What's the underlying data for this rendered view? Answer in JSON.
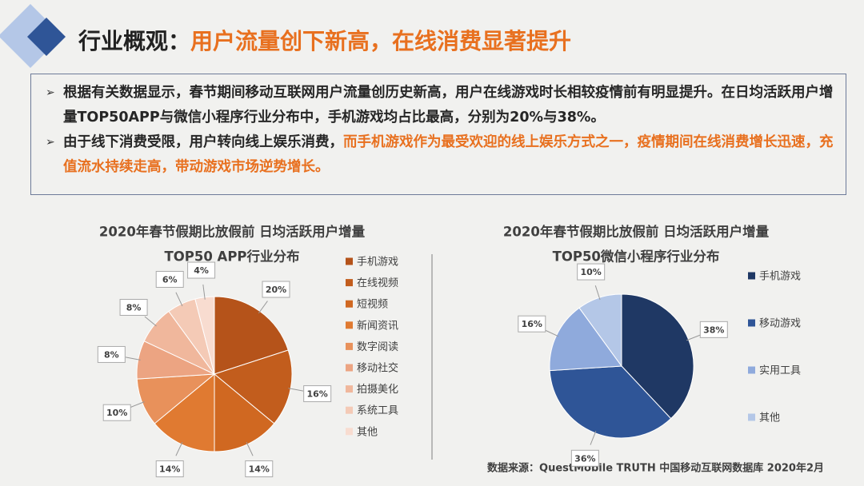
{
  "header": {
    "title_prefix": "行业概观：",
    "title_highlight": "用户流量创下新高，在线消费显著提升"
  },
  "bullets": [
    {
      "segments": [
        {
          "text": "根据有关数据显示，春节期间移动互联网用户流量创历史新高，用户在线游戏时长相较疫情前有明显提升。在日均活跃用户增量TOP50APP与微信小程序行业分布中，手机游戏均占比最高，分别为20%与38%。",
          "color": "#262626"
        }
      ]
    },
    {
      "segments": [
        {
          "text": "由于线下消费受限，用户转向线上娱乐消费，",
          "color": "#262626"
        },
        {
          "text": "而手机游戏作为最受欢迎的线上娱乐方式之一，疫情期间在线消费增长迅速，充值流水持续走高，带动游戏市场逆势增长。",
          "color": "#e8701f"
        }
      ]
    }
  ],
  "chart_data": [
    {
      "type": "pie",
      "title": [
        "2020年春节假期比放假前 日均活跃用户增量",
        "TOP50 APP行业分布"
      ],
      "categories": [
        "手机游戏",
        "在线视频",
        "短视频",
        "新闻资讯",
        "数字阅读",
        "移动社交",
        "拍摄美化",
        "系统工具",
        "其他"
      ],
      "values": [
        20,
        16,
        14,
        14,
        10,
        8,
        8,
        6,
        4
      ],
      "value_labels": [
        "20%",
        "16%",
        "14%",
        "14%",
        "10%",
        "8%",
        "8%",
        "6%",
        "4%"
      ],
      "colors": [
        "#b5531a",
        "#c25d1d",
        "#d06821",
        "#e07a31",
        "#e8915b",
        "#eca482",
        "#f0b79c",
        "#f4cab6",
        "#f8dcd0"
      ]
    },
    {
      "type": "pie",
      "title": [
        "2020年春节假期比放假前 日均活跃用户增量",
        "TOP50微信小程序行业分布"
      ],
      "categories": [
        "手机游戏",
        "移动游戏",
        "实用工具",
        "其他"
      ],
      "values": [
        38,
        36,
        16,
        10
      ],
      "value_labels": [
        "38%",
        "36%",
        "16%",
        "10%"
      ],
      "colors": [
        "#1f3864",
        "#2f5597",
        "#8faadc",
        "#b4c7e7"
      ]
    }
  ],
  "source": "数据来源：QuestMobile TRUTH 中国移动互联网数据库 2020年2月"
}
